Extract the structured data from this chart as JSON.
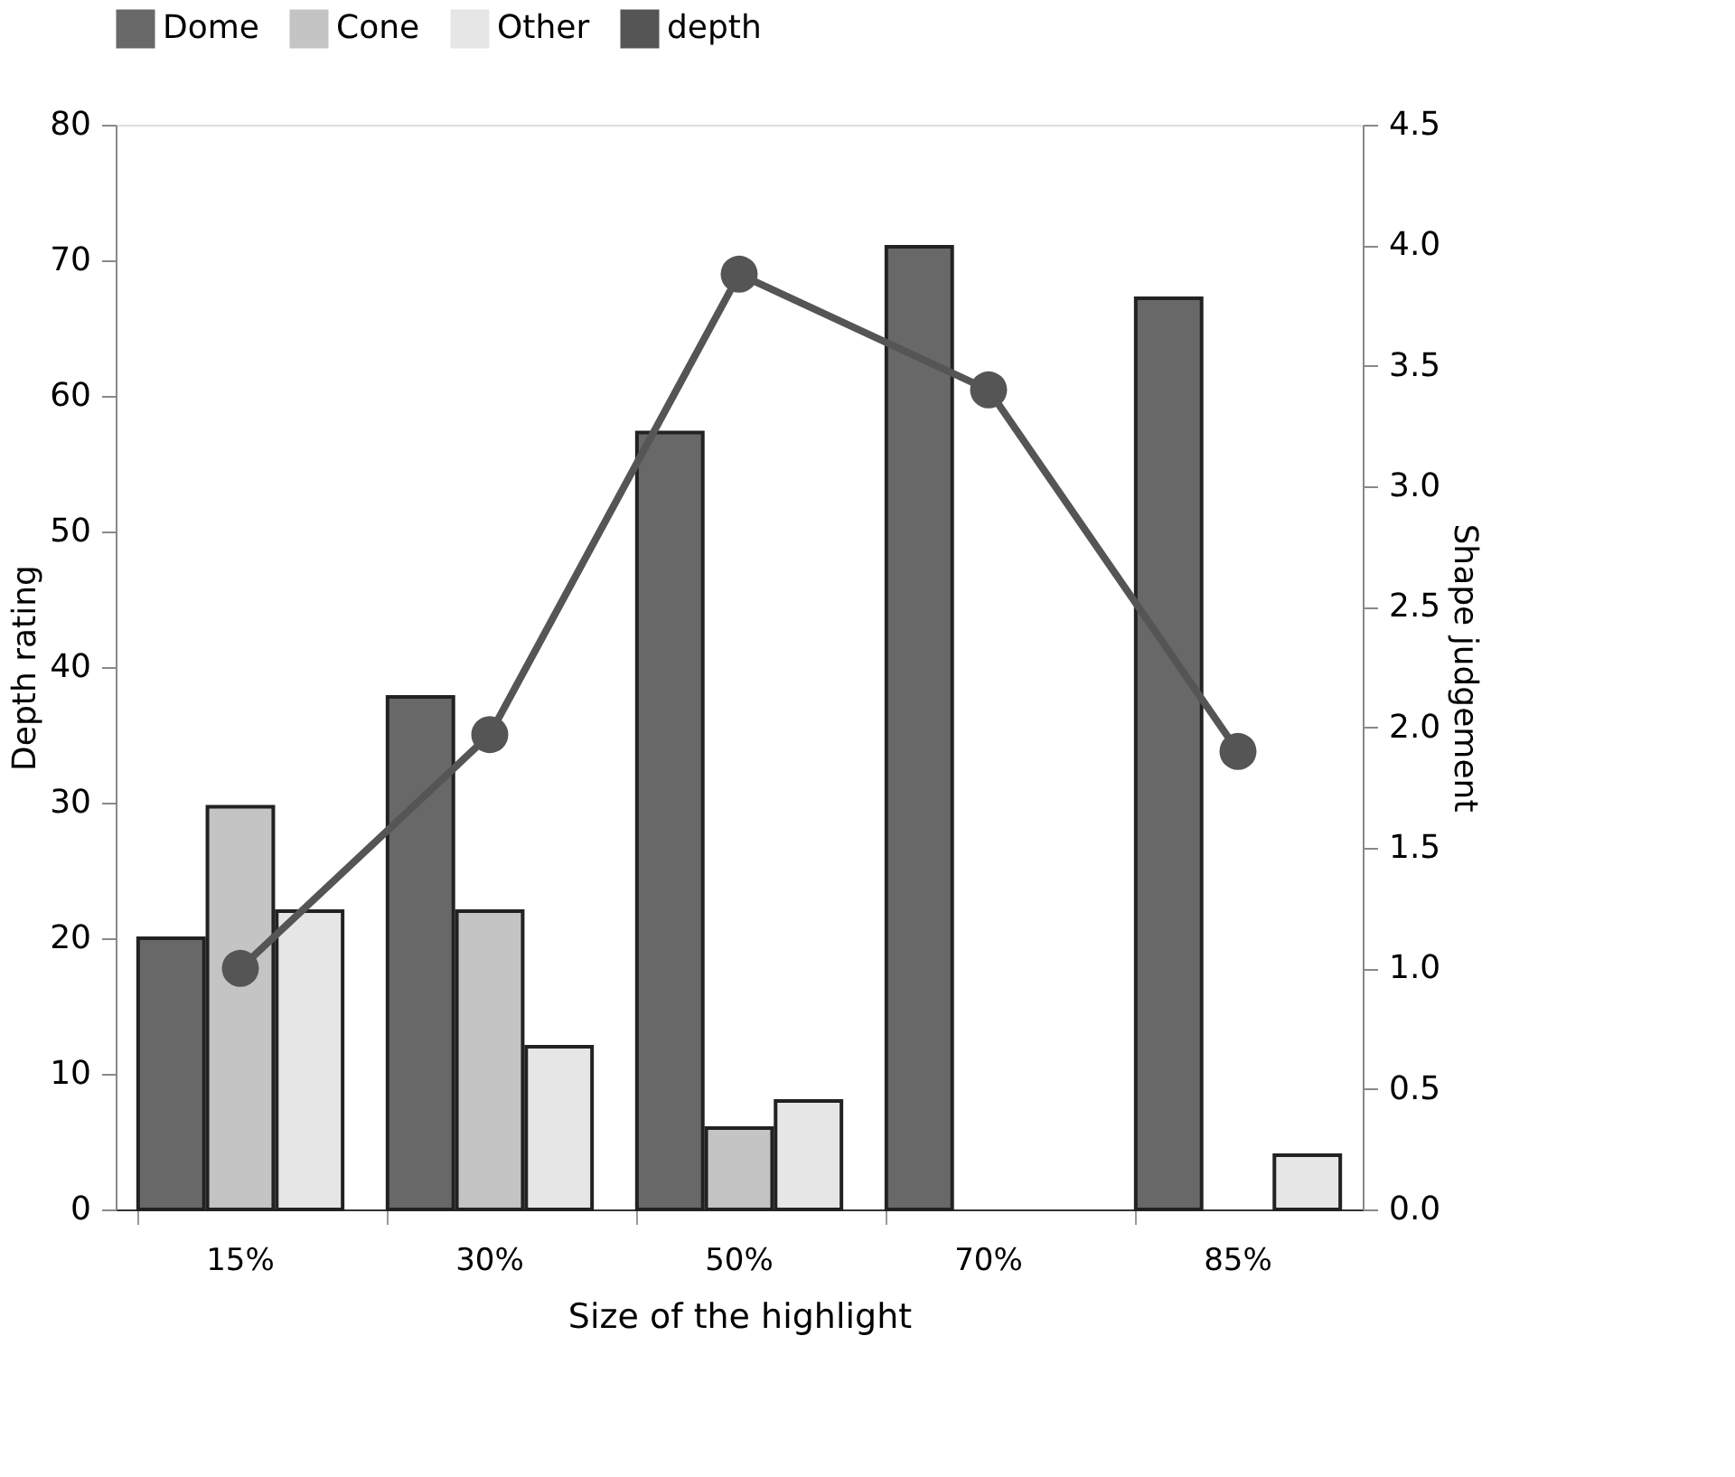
{
  "chart_data": {
    "type": "bar",
    "xlabel": "Size of the highlight",
    "ylabel": "Depth rating",
    "y2label": "Shape judgement",
    "categories": [
      "15%",
      "30%",
      "50%",
      "70%",
      "85%"
    ],
    "series": [
      {
        "name": "Dome",
        "color": "#686868",
        "values": [
          20,
          37.8,
          57.3,
          71,
          67.2
        ]
      },
      {
        "name": "Cone",
        "color": "#c4c4c4",
        "values": [
          29.7,
          22,
          6,
          null,
          null
        ]
      },
      {
        "name": "Other",
        "color": "#e6e6e6",
        "values": [
          22,
          12,
          8,
          null,
          4
        ]
      },
      {
        "name": "depth",
        "type": "line",
        "axis": "y2",
        "color": "#555555",
        "values": [
          1.0,
          1.97,
          3.88,
          3.4,
          1.9
        ]
      }
    ],
    "ylim": [
      0,
      80
    ],
    "yticks": [
      0,
      10,
      20,
      30,
      40,
      50,
      60,
      70,
      80
    ],
    "y2lim": [
      0,
      4.5
    ],
    "y2ticks": [
      {
        "value": 0,
        "label": "0.0"
      },
      0.5,
      {
        "value": 1,
        "label": "1.0"
      },
      1.5,
      {
        "value": 2,
        "label": "2.0"
      },
      2.5,
      {
        "value": 3,
        "label": "3.0"
      },
      3.5,
      {
        "value": 4,
        "label": "4.0"
      },
      4.5
    ],
    "marker": "circle",
    "line_style": "solid",
    "grid": false,
    "legend": "top"
  }
}
